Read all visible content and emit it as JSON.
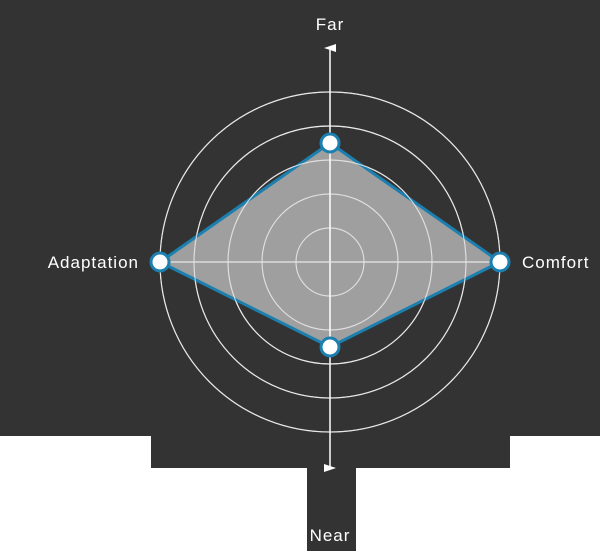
{
  "chart_data": {
    "type": "radar",
    "axes": [
      "Far",
      "Comfort",
      "Near",
      "Adaptation"
    ],
    "values": [
      3.5,
      5,
      2.5,
      5
    ],
    "rmax": 5,
    "ring_count": 5,
    "grid": true,
    "legend": "none"
  },
  "colors": {
    "background": "#333333",
    "grid": "#e6e6e6",
    "fill": "#b3b3b3",
    "stroke": "#1b7fb0",
    "marker_fill": "#ffffff",
    "axis": "#ffffff",
    "label": "#ffffff"
  }
}
